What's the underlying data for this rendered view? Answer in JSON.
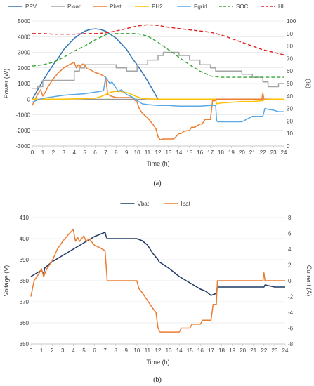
{
  "chart_data": [
    {
      "type": "line",
      "caption": "(a)",
      "xlabel": "Time (h)",
      "ylabel": "Power (W)",
      "y2label": "(%)",
      "xlim": [
        0,
        24
      ],
      "ylim": [
        -3000,
        5000
      ],
      "y2lim": [
        0,
        100
      ],
      "xticks": [
        0,
        1,
        2,
        3,
        4,
        5,
        6,
        7,
        8,
        9,
        10,
        11,
        12,
        13,
        14,
        15,
        16,
        17,
        18,
        19,
        20,
        21,
        22,
        23,
        24
      ],
      "yticks": [
        -3000,
        -2000,
        -1000,
        0,
        1000,
        2000,
        3000,
        4000,
        5000
      ],
      "y2ticks": [
        0,
        10,
        20,
        30,
        40,
        50,
        60,
        70,
        80,
        90,
        100
      ],
      "grid": true,
      "legend_position": "top",
      "series": [
        {
          "name": "PPV",
          "color": "#2e75b6",
          "dash": "solid",
          "axis": "left",
          "x": [
            0,
            0.5,
            1,
            1.5,
            2,
            2.5,
            3,
            3.5,
            4,
            4.5,
            5,
            5.5,
            6,
            6.5,
            7,
            7.5,
            8,
            8.5,
            9,
            9.5,
            10,
            10.5,
            11,
            11.5,
            12
          ],
          "y": [
            0,
            590,
            1160,
            1700,
            2200,
            2650,
            3180,
            3540,
            3900,
            4130,
            4350,
            4460,
            4500,
            4460,
            4350,
            4130,
            3900,
            3540,
            3180,
            2650,
            2200,
            1700,
            1160,
            590,
            0
          ]
        },
        {
          "name": "Pload",
          "color": "#a5a5a5",
          "dash": "solid",
          "axis": "left",
          "x": [
            0,
            0.5,
            0.5,
            1,
            1,
            1.5,
            1.5,
            2,
            2,
            2.5,
            2.5,
            3,
            3,
            3.5,
            3.5,
            4,
            4,
            4.5,
            4.5,
            5,
            5,
            5.5,
            5.5,
            6,
            6,
            6.5,
            6.5,
            7,
            7,
            7.5,
            7.5,
            8,
            8,
            8.5,
            8.5,
            9,
            9,
            9.5,
            9.5,
            10,
            10,
            10.5,
            10.5,
            11,
            11,
            11.5,
            11.5,
            12,
            12,
            12.5,
            12.5,
            13,
            13,
            13.5,
            13.5,
            14,
            14,
            14.5,
            14.5,
            15,
            15,
            15.5,
            15.5,
            16,
            16,
            16.5,
            16.5,
            17,
            17,
            17.5,
            17.5,
            18,
            18,
            18.5,
            18.5,
            19,
            19,
            19.5,
            19.5,
            20,
            20,
            20.5,
            20.5,
            21,
            21,
            21.5,
            21.5,
            22,
            22,
            22.5,
            22.5,
            23,
            23,
            23.5,
            23.5,
            24
          ],
          "y": [
            700,
            700,
            800,
            800,
            1200,
            1200,
            1200,
            1200,
            1200,
            1200,
            1200,
            1200,
            1200,
            1200,
            1200,
            1200,
            1800,
            1800,
            2000,
            2000,
            2200,
            2200,
            2200,
            2200,
            2200,
            2200,
            2200,
            2200,
            2200,
            2200,
            2200,
            2200,
            2000,
            2000,
            2000,
            2000,
            1800,
            1800,
            1800,
            1800,
            2200,
            2200,
            2200,
            2200,
            2500,
            2500,
            2500,
            2500,
            2800,
            2800,
            3000,
            3000,
            3000,
            3000,
            3000,
            3000,
            2800,
            2800,
            2800,
            2800,
            2500,
            2500,
            2500,
            2500,
            2200,
            2200,
            2200,
            2200,
            2000,
            2000,
            1800,
            1800,
            1800,
            1800,
            1800,
            1800,
            1800,
            1800,
            1800,
            1800,
            1600,
            1600,
            1600,
            1600,
            1400,
            1400,
            1400,
            1400,
            1100,
            1100,
            800,
            800,
            800,
            800,
            1000,
            1000
          ]
        },
        {
          "name": "Pbat",
          "color": "#ed7d31",
          "dash": "solid",
          "axis": "left",
          "x": [
            0,
            0.2,
            0.5,
            0.8,
            1,
            1.2,
            1.5,
            2,
            2.5,
            3,
            3.5,
            4,
            4.2,
            4.4,
            4.6,
            4.8,
            5,
            5.2,
            5.5,
            6,
            6.5,
            7,
            7.2,
            7.5,
            8,
            8.5,
            9,
            9.5,
            10,
            10.2,
            10.5,
            11,
            11.5,
            11.8,
            12,
            12.2,
            12.5,
            13,
            13.5,
            14,
            14.2,
            14.5,
            15,
            15.2,
            15.5,
            16,
            16.2,
            16.5,
            17,
            17.2,
            17.5,
            17.6,
            18,
            19,
            20,
            21,
            21.9,
            22,
            22.1,
            23,
            24
          ],
          "y": [
            -400,
            -100,
            300,
            600,
            200,
            400,
            800,
            1300,
            1700,
            2000,
            2200,
            2350,
            2000,
            2200,
            2100,
            2250,
            2200,
            1950,
            1900,
            1700,
            1600,
            1400,
            300,
            200,
            100,
            100,
            100,
            100,
            -200,
            -600,
            -900,
            -1200,
            -1600,
            -1900,
            -2400,
            -2600,
            -2550,
            -2550,
            -2550,
            -2200,
            -2200,
            -2050,
            -2000,
            -1800,
            -1800,
            -1600,
            -1600,
            -1300,
            -1300,
            -100,
            -100,
            0,
            0,
            0,
            0,
            0,
            0,
            400,
            0,
            0,
            0
          ]
        },
        {
          "name": "PH2",
          "color": "#ffc000",
          "dash": "solid",
          "axis": "left",
          "x": [
            0,
            1,
            2,
            3,
            4,
            5,
            6,
            6.5,
            7,
            7.5,
            8,
            8.5,
            9,
            9.5,
            10,
            10.5,
            11,
            12,
            13,
            14,
            15,
            16,
            17,
            17.5,
            17.6,
            18,
            19,
            20,
            21,
            22,
            22.1,
            23,
            24
          ],
          "y": [
            0,
            0,
            0,
            0,
            20,
            40,
            60,
            150,
            300,
            450,
            500,
            480,
            420,
            300,
            150,
            50,
            20,
            0,
            0,
            0,
            0,
            0,
            0,
            0,
            -300,
            -250,
            -200,
            -150,
            -150,
            -100,
            -50,
            0,
            0
          ]
        },
        {
          "name": "Pgrid",
          "color": "#5aa9e6",
          "dash": "solid",
          "axis": "left",
          "x": [
            0,
            0.5,
            1,
            1.5,
            2,
            2.5,
            3,
            3.5,
            4,
            4.5,
            5,
            5.5,
            6,
            6.5,
            6.8,
            7,
            7.2,
            7.4,
            7.6,
            7.8,
            8,
            8.2,
            8.5,
            9,
            9.5,
            10,
            10.5,
            11,
            12,
            13,
            14,
            15,
            16,
            17,
            17.5,
            17.6,
            17.7,
            18,
            19,
            20,
            21,
            21.5,
            22,
            22.2,
            22.5,
            23,
            23.5,
            24
          ],
          "y": [
            -200,
            -50,
            50,
            100,
            150,
            200,
            250,
            280,
            300,
            320,
            350,
            400,
            450,
            500,
            550,
            1400,
            1200,
            1000,
            1100,
            900,
            700,
            500,
            600,
            300,
            150,
            -100,
            -300,
            -350,
            -400,
            -400,
            -450,
            -450,
            -450,
            -400,
            -400,
            -1400,
            -1450,
            -1450,
            -1450,
            -1450,
            -1100,
            -1100,
            -1100,
            -600,
            -650,
            -700,
            -800,
            -800
          ]
        },
        {
          "name": "SOC",
          "color": "#3aa63a",
          "dash": "dashed",
          "axis": "right",
          "x": [
            0,
            1,
            2,
            3,
            4,
            5,
            6,
            7,
            8,
            9,
            10,
            11,
            12,
            13,
            14,
            15,
            16,
            17,
            18,
            19,
            20,
            21,
            22,
            23,
            24
          ],
          "y": [
            64,
            65,
            67,
            71,
            76,
            80,
            85,
            89,
            90,
            90,
            90,
            88,
            83,
            77,
            71,
            65,
            60,
            56,
            55,
            55,
            55,
            55,
            55,
            55,
            55
          ]
        },
        {
          "name": "HL",
          "color": "#e02020",
          "dash": "dashed",
          "axis": "right",
          "x": [
            0,
            1,
            2,
            3,
            4,
            5,
            6,
            7,
            8,
            9,
            10,
            11,
            12,
            13,
            14,
            15,
            16,
            17,
            18,
            19,
            20,
            21,
            22,
            23,
            24
          ],
          "y": [
            90,
            90,
            89.5,
            89.5,
            89.5,
            90,
            90,
            90.5,
            92,
            94,
            96,
            97,
            96.5,
            95,
            94,
            93,
            92,
            91,
            89,
            86,
            83,
            80,
            77,
            75,
            73
          ]
        }
      ]
    },
    {
      "type": "line",
      "caption": "(b)",
      "xlabel": "Time (h)",
      "ylabel": "Voltage (V)",
      "y2label": "Current (A)",
      "xlim": [
        0,
        24
      ],
      "ylim": [
        350,
        410
      ],
      "y2lim": [
        -8,
        8
      ],
      "xticks": [
        0,
        1,
        2,
        3,
        4,
        5,
        6,
        7,
        8,
        9,
        10,
        11,
        12,
        13,
        14,
        15,
        16,
        17,
        18,
        19,
        20,
        21,
        22,
        23,
        24
      ],
      "yticks": [
        350,
        360,
        370,
        380,
        390,
        400,
        410
      ],
      "y2ticks": [
        -8,
        -6,
        -4,
        -2,
        0,
        2,
        4,
        6,
        8
      ],
      "grid": true,
      "legend_position": "top",
      "series": [
        {
          "name": "Vbat",
          "color": "#1f3864",
          "dash": "solid",
          "axis": "left",
          "x": [
            0,
            1,
            1.2,
            1.3,
            2,
            3,
            4,
            5,
            6,
            6.5,
            7,
            7.1,
            7.2,
            8,
            9,
            10,
            10.5,
            11,
            11.5,
            12,
            12.1,
            13,
            14,
            15,
            16,
            16.5,
            17,
            17.5,
            17.6,
            18,
            19,
            20,
            21,
            22,
            22.1,
            23,
            24
          ],
          "y": [
            382,
            385,
            383,
            386,
            389,
            392,
            395,
            398,
            401,
            402,
            403,
            401,
            400,
            400,
            400,
            400,
            399,
            397,
            393,
            390,
            389,
            386,
            382,
            379,
            376,
            375,
            373,
            374,
            377,
            377,
            377,
            377,
            377,
            377,
            378,
            377,
            377
          ]
        },
        {
          "name": "Ibat",
          "color": "#ed7d31",
          "dash": "solid",
          "axis": "right",
          "x": [
            0,
            0.3,
            0.8,
            1,
            1.2,
            1.5,
            2,
            2.5,
            3,
            3.5,
            4,
            4.2,
            4.4,
            4.6,
            5,
            5.2,
            5.5,
            6,
            6.5,
            7,
            7.2,
            7.5,
            8,
            9,
            10,
            10.2,
            10.5,
            11,
            11.5,
            11.8,
            12,
            12.2,
            13,
            14,
            14.2,
            15,
            15.2,
            16,
            16.2,
            17,
            17.2,
            17.5,
            17.6,
            18,
            19,
            20,
            21,
            21.9,
            22,
            22.1,
            23,
            24
          ],
          "y": [
            -2,
            0,
            1,
            1.5,
            0.5,
            1.5,
            2.5,
            4,
            5,
            5.8,
            6.5,
            5,
            5.5,
            5,
            5.7,
            5,
            5.3,
            4.5,
            4.2,
            3.8,
            0,
            0,
            0,
            0,
            0,
            -1,
            -1.5,
            -2.5,
            -3.5,
            -4,
            -6,
            -6.5,
            -6.5,
            -6.5,
            -6,
            -6,
            -5.5,
            -5.5,
            -5,
            -5,
            -3,
            -3,
            0,
            0,
            0,
            0,
            0,
            0,
            1,
            0,
            0,
            0
          ]
        }
      ]
    }
  ]
}
